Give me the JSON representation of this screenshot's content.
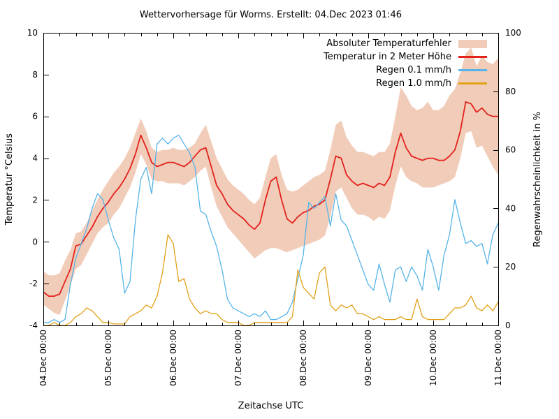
{
  "title": "Wettervorhersage für Worms. Erstellt: 04.Dec 2023 01:46",
  "axes": {
    "x": {
      "label": "Zeitachse UTC",
      "tick_labels": [
        "04.Dec 00:00",
        "05.Dec 00:00",
        "06.Dec 00:00",
        "07.Dec 00:00",
        "08.Dec 00:00",
        "09.Dec 00:00",
        "10.Dec 00:00",
        "11.Dec 00:00"
      ],
      "tick_hours": [
        0,
        24,
        48,
        72,
        96,
        120,
        144,
        168
      ],
      "minor_tick_hours": 6
    },
    "y_left": {
      "label": "Temperatur °Celsius",
      "min": -4,
      "max": 10,
      "ticks": [
        -4,
        -2,
        0,
        2,
        4,
        6,
        8,
        10
      ]
    },
    "y_right": {
      "label": "Regenwahrscheinlichkeit in %",
      "min": 0,
      "max": 100,
      "ticks": [
        0,
        20,
        40,
        60,
        80,
        100
      ]
    }
  },
  "legend": {
    "items": [
      {
        "label": "Absoluter Temperaturfehler",
        "type": "band",
        "color": "#f1ccb9"
      },
      {
        "label": "Temperatur in 2 Meter Höhe",
        "type": "line",
        "color": "#e3221c"
      },
      {
        "label": "Regen 0.1 mm/h",
        "type": "line",
        "color": "#56b4e9"
      },
      {
        "label": "Regen 1.0 mm/h",
        "type": "line",
        "color": "#e1a117"
      }
    ]
  },
  "chart_data": {
    "type": "line",
    "title": "Wettervorhersage für Worms. Erstellt: 04.Dec 2023 01:46",
    "xlabel": "Zeitachse UTC",
    "x_unit": "hours since 04.Dec 2023 00:00 UTC",
    "x_range_hours": [
      0,
      168
    ],
    "x_step_hours": 2,
    "ylabel_left": "Temperatur °Celsius",
    "ylim_left": [
      -4,
      10
    ],
    "ylabel_right": "Regenwahrscheinlichkeit in %",
    "ylim_right": [
      0,
      100
    ],
    "grid": false,
    "legend_position": "top-right-inside",
    "series": [
      {
        "name": "Absoluter Temperaturfehler",
        "kind": "band",
        "axis": "left",
        "color": "#f1ccb9",
        "upper": [
          -1.4,
          -1.6,
          -1.6,
          -1.5,
          -0.9,
          -0.4,
          0.4,
          0.5,
          0.9,
          1.5,
          2.0,
          2.5,
          2.9,
          3.3,
          3.6,
          4.0,
          4.5,
          5.2,
          5.9,
          5.3,
          4.5,
          4.3,
          4.4,
          4.4,
          4.5,
          4.4,
          4.4,
          4.5,
          4.7,
          5.2,
          5.6,
          4.8,
          4.0,
          3.5,
          3.0,
          2.7,
          2.5,
          2.3,
          2.0,
          1.8,
          2.1,
          3.1,
          4.0,
          4.2,
          3.2,
          2.5,
          2.4,
          2.5,
          2.7,
          2.9,
          3.1,
          3.2,
          3.4,
          4.4,
          5.6,
          5.8,
          5.0,
          4.6,
          4.3,
          4.3,
          4.2,
          4.1,
          4.3,
          4.3,
          4.7,
          6.0,
          7.4,
          7.0,
          6.5,
          6.3,
          6.4,
          6.7,
          6.3,
          6.3,
          6.5,
          7.0,
          7.3,
          8.1,
          9.0,
          9.3,
          8.4,
          8.9,
          8.6,
          8.5,
          8.8
        ],
        "lower": [
          -3.0,
          -3.2,
          -3.4,
          -3.5,
          -2.8,
          -2.1,
          -1.3,
          -1.1,
          -0.6,
          -0.1,
          0.4,
          0.7,
          0.9,
          1.3,
          1.6,
          2.1,
          2.6,
          3.3,
          4.2,
          3.7,
          3.0,
          2.9,
          2.9,
          2.8,
          2.8,
          2.8,
          2.7,
          2.9,
          3.1,
          3.4,
          3.6,
          2.6,
          1.7,
          1.2,
          0.7,
          0.4,
          0.1,
          -0.2,
          -0.5,
          -0.8,
          -0.6,
          -0.4,
          -0.3,
          -0.3,
          -0.4,
          -0.5,
          -0.4,
          -0.3,
          -0.2,
          -0.1,
          0.0,
          0.1,
          0.3,
          1.2,
          2.4,
          2.6,
          2.1,
          1.6,
          1.3,
          1.3,
          1.2,
          1.0,
          1.2,
          1.1,
          1.5,
          2.7,
          3.6,
          3.1,
          2.9,
          2.8,
          2.6,
          2.6,
          2.6,
          2.7,
          2.8,
          2.9,
          3.1,
          4.0,
          5.2,
          5.3,
          4.5,
          4.6,
          4.1,
          3.6,
          3.2
        ]
      },
      {
        "name": "Temperatur in 2 Meter Höhe",
        "kind": "line",
        "axis": "left",
        "color": "#e3221c",
        "values": [
          -2.4,
          -2.6,
          -2.6,
          -2.5,
          -1.9,
          -1.3,
          -0.2,
          -0.1,
          0.3,
          0.7,
          1.2,
          1.6,
          1.9,
          2.3,
          2.6,
          3.0,
          3.5,
          4.2,
          5.1,
          4.5,
          3.8,
          3.6,
          3.7,
          3.8,
          3.8,
          3.7,
          3.6,
          3.8,
          4.1,
          4.4,
          4.5,
          3.6,
          2.7,
          2.3,
          1.8,
          1.5,
          1.3,
          1.1,
          0.8,
          0.6,
          0.9,
          2.0,
          2.9,
          3.1,
          2.0,
          1.1,
          0.9,
          1.2,
          1.4,
          1.5,
          1.7,
          1.8,
          2.0,
          3.0,
          4.1,
          4.0,
          3.2,
          2.9,
          2.7,
          2.8,
          2.7,
          2.6,
          2.8,
          2.7,
          3.1,
          4.3,
          5.2,
          4.5,
          4.1,
          4.0,
          3.9,
          4.0,
          4.0,
          3.9,
          3.9,
          4.1,
          4.4,
          5.3,
          6.7,
          6.6,
          6.2,
          6.4,
          6.1,
          6.0,
          6.0
        ]
      },
      {
        "name": "Regen 0.1 mm/h",
        "kind": "line",
        "axis": "right",
        "color": "#56b4e9",
        "values": [
          1,
          1,
          2,
          1,
          2,
          14,
          23,
          28,
          33,
          40,
          45,
          43,
          36,
          30,
          26,
          11,
          15,
          36,
          50,
          54,
          45,
          62,
          64,
          62,
          64,
          65,
          62,
          59,
          54,
          39,
          38,
          32,
          27,
          19,
          9,
          6,
          5,
          4,
          3,
          4,
          3,
          5,
          2,
          2,
          3,
          4,
          8,
          16,
          24,
          42,
          40,
          42,
          44,
          34,
          45,
          36,
          34,
          29,
          24,
          19,
          14,
          12,
          21,
          14,
          8,
          19,
          20,
          15,
          20,
          17,
          12,
          26,
          20,
          12,
          24,
          31,
          43,
          35,
          28,
          29,
          27,
          28,
          21,
          31,
          35
        ]
      },
      {
        "name": "Regen 1.0 mm/h",
        "kind": "line",
        "axis": "right",
        "color": "#e1a117",
        "values": [
          0,
          0,
          1,
          0,
          0,
          1,
          3,
          4,
          6,
          5,
          3,
          1,
          1,
          0.5,
          0.5,
          0.5,
          3,
          4,
          5,
          7,
          6,
          10,
          18,
          31,
          28,
          15,
          16,
          9,
          6,
          4,
          5,
          4,
          4,
          2,
          1,
          1,
          1,
          0,
          0,
          1,
          1,
          1,
          1,
          1,
          1,
          1,
          3,
          19,
          13,
          11,
          9,
          18,
          20,
          7,
          5,
          7,
          6,
          7,
          4,
          4,
          3,
          2,
          3,
          2,
          2,
          2,
          3,
          2,
          2,
          9,
          3,
          2,
          2,
          2,
          2,
          4,
          6,
          6,
          7,
          10,
          6,
          5,
          7,
          5,
          8
        ]
      }
    ]
  },
  "colors": {
    "background": "#ffffff",
    "border": "#000000",
    "text": "#000000",
    "band": "#f1ccb9",
    "temperature": "#e3221c",
    "rain01": "#56b4e9",
    "rain10": "#e1a117"
  }
}
